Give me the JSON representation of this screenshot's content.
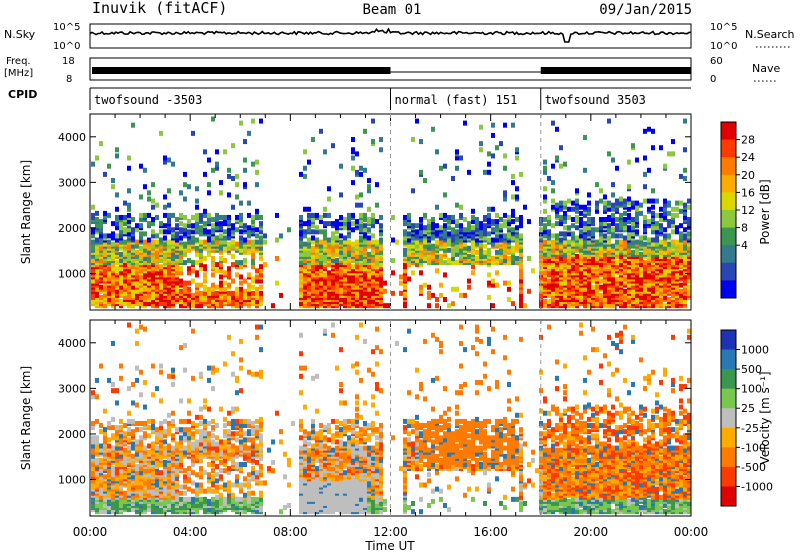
{
  "header": {
    "station": "Inuvik (fitACF)",
    "beam": "Beam 01",
    "date": "09/Jan/2015"
  },
  "strips": {
    "nsky_label": "N.Sky",
    "nsky_ticks": [
      "10^5",
      "10^0"
    ],
    "nsearch_label": "N.Search",
    "nsearch_ticks": [
      "10^5",
      "10^0"
    ],
    "freq_label": "Freq.",
    "freq_unit": "[MHz]",
    "freq_ticks": [
      "18",
      "8"
    ],
    "nave_label": "Nave",
    "nave_ticks": [
      "60",
      "0"
    ],
    "cpid_label": "CPID"
  },
  "cpid_segments": [
    {
      "label": "twofsound -3503",
      "start": 0,
      "end": 12
    },
    {
      "label": "normal (fast) 151",
      "start": 12,
      "end": 18
    },
    {
      "label": "twofsound 3503",
      "start": 18,
      "end": 24
    }
  ],
  "chart_data": [
    {
      "type": "heatmap",
      "name": "power-panel",
      "ylabel": "Slant Range [km]",
      "xlabel": "Time UT",
      "x_ticks": [
        "00:00",
        "04:00",
        "08:00",
        "12:00",
        "16:00",
        "20:00",
        "00:00"
      ],
      "xlim": [
        0,
        24
      ],
      "ylim": [
        200,
        4500
      ],
      "y_ticks": [
        1000,
        2000,
        3000,
        4000
      ],
      "colorbar": {
        "label": "Power [dB]",
        "ticks": [
          "28",
          "24",
          "20",
          "16",
          "12",
          "8",
          "4"
        ],
        "colors": [
          "#e00000",
          "#ff3a00",
          "#ff7a00",
          "#ffaa00",
          "#d8d800",
          "#8cc83c",
          "#3c9650",
          "#327a8c",
          "#2846b4",
          "#0000f0"
        ]
      }
    },
    {
      "type": "heatmap",
      "name": "velocity-panel",
      "ylabel": "Slant Range [km]",
      "xlabel": "Time UT",
      "x_ticks": [
        "00:00",
        "04:00",
        "08:00",
        "12:00",
        "16:00",
        "20:00",
        "00:00"
      ],
      "xlim": [
        0,
        24
      ],
      "ylim": [
        200,
        4500
      ],
      "y_ticks": [
        1000,
        2000,
        3000,
        4000
      ],
      "colorbar": {
        "label": "Velocity [m s⁻¹]",
        "ticks": [
          "1000",
          "500",
          "100",
          "25",
          "-25",
          "-100",
          "-500",
          "-1000"
        ],
        "colors": [
          "#1e32b4",
          "#2878b4",
          "#3c9650",
          "#78c850",
          "#bebebe",
          "#ffaa00",
          "#ff7a00",
          "#ff3a00",
          "#e00000"
        ]
      }
    }
  ],
  "x_axis_title": "Time UT"
}
